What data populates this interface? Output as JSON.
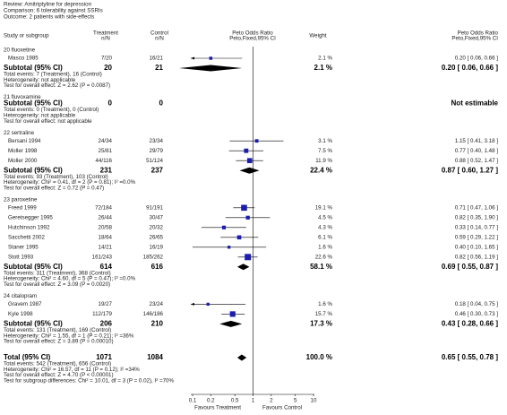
{
  "chart_data": {
    "type": "forest",
    "header": [
      "Review:   Amitriptyline for depression",
      "Comparison:   6 tolerability against SSRIs",
      "Outcome:   2 patients with side-effects"
    ],
    "columns": {
      "study": "Study or subgroup",
      "treatment": [
        "Treatment",
        "n/N"
      ],
      "control": [
        "Control",
        "n/N"
      ],
      "plot": [
        "Peto Odds Ratio",
        "Peto,Fixed,95% CI"
      ],
      "weight": "Weight",
      "result": [
        "Peto Odds Ratio",
        "Peto,Fixed,95% CI"
      ]
    },
    "xlim": [
      0.1,
      10
    ],
    "log_scale": true,
    "xticks": [
      0.1,
      0.2,
      0.5,
      1,
      2,
      5,
      10
    ],
    "favours_left": "Favours Treatment",
    "favours_right": "Favours Control",
    "square_color": "#1c1cb0",
    "diamond_color": "#000000",
    "groups": [
      {
        "name": "20 fluoxetine",
        "studies": [
          {
            "name": "Masco 1985",
            "treatment": "7/20",
            "control": "16/21",
            "weight": {
              "value": 2.1,
              "label": "2.1 %"
            },
            "result": {
              "value": 0.2,
              "low": 0.06,
              "high": 0.66,
              "label": "0.20 [ 0.06, 0.66 ]"
            }
          }
        ],
        "subtotal": {
          "label": "Subtotal (95% CI)",
          "treatment_n": 20,
          "control_n": 21,
          "weight": {
            "value": 2.1,
            "label": "2.1 %"
          },
          "result": {
            "value": 0.2,
            "low": 0.06,
            "high": 0.66,
            "label": "0.20 [ 0.06, 0.66 ]"
          },
          "footnotes": [
            "Total events: 7 (Treatment), 16 (Control)",
            "Heterogeneity: not applicable",
            "Test for overall effect: Z = 2.62 (P = 0.0087)"
          ]
        }
      },
      {
        "name": "21 fluvoxamine",
        "studies": [],
        "subtotal": {
          "label": "Subtotal (95% CI)",
          "treatment_n": 0,
          "control_n": 0,
          "result": {
            "label": "Not estimable"
          },
          "footnotes": [
            "Total events: 0 (Treatment), 0 (Control)",
            "Heterogeneity: not applicable",
            "Test for overall effect: not applicable"
          ]
        }
      },
      {
        "name": "22 sertraline",
        "studies": [
          {
            "name": "Bersani 1994",
            "treatment": "24/34",
            "control": "23/34",
            "weight": {
              "value": 3.1,
              "label": "3.1 %"
            },
            "result": {
              "value": 1.15,
              "low": 0.41,
              "high": 3.18,
              "label": "1.15 [ 0.41, 3.18 ]"
            }
          },
          {
            "name": "Moller 1998",
            "treatment": "25/81",
            "control": "29/79",
            "weight": {
              "value": 7.5,
              "label": "7.5 %"
            },
            "result": {
              "value": 0.77,
              "low": 0.4,
              "high": 1.48,
              "label": "0.77 [ 0.40, 1.48 ]"
            }
          },
          {
            "name": "Moller 2000",
            "treatment": "44/116",
            "control": "51/124",
            "weight": {
              "value": 11.9,
              "label": "11.9 %"
            },
            "result": {
              "value": 0.88,
              "low": 0.52,
              "high": 1.47,
              "label": "0.88 [ 0.52, 1.47 ]"
            }
          }
        ],
        "subtotal": {
          "label": "Subtotal (95% CI)",
          "treatment_n": 231,
          "control_n": 237,
          "weight": {
            "value": 22.4,
            "label": "22.4 %"
          },
          "result": {
            "value": 0.87,
            "low": 0.6,
            "high": 1.27,
            "label": "0.87 [ 0.60, 1.27 ]"
          },
          "footnotes": [
            "Total events: 93 (Treatment), 103 (Control)",
            "Heterogeneity: Chi² = 0.41, df = 2 (P = 0.81); I² =0.0%",
            "Test for overall effect: Z = 0.72 (P = 0.47)"
          ]
        }
      },
      {
        "name": "23 paroxetine",
        "studies": [
          {
            "name": "Freed 1999",
            "treatment": "72/184",
            "control": "91/191",
            "weight": {
              "value": 19.1,
              "label": "19.1 %"
            },
            "result": {
              "value": 0.71,
              "low": 0.47,
              "high": 1.06,
              "label": "0.71 [ 0.47, 1.06 ]"
            }
          },
          {
            "name": "Geretsegger 1995",
            "treatment": "26/44",
            "control": "30/47",
            "weight": {
              "value": 4.5,
              "label": "4.5 %"
            },
            "result": {
              "value": 0.82,
              "low": 0.35,
              "high": 1.9,
              "label": "0.82 [ 0.35, 1.90 ]"
            }
          },
          {
            "name": "Hutchinson 1992",
            "treatment": "20/58",
            "control": "20/32",
            "weight": {
              "value": 4.3,
              "label": "4.3 %"
            },
            "result": {
              "value": 0.33,
              "low": 0.14,
              "high": 0.77,
              "label": "0.33 [ 0.14, 0.77 ]"
            }
          },
          {
            "name": "Sacchetti 2002",
            "treatment": "18/64",
            "control": "26/65",
            "weight": {
              "value": 6.1,
              "label": "6.1 %"
            },
            "result": {
              "value": 0.59,
              "low": 0.29,
              "high": 1.22,
              "label": "0.59 [ 0.29, 1.22 ]"
            }
          },
          {
            "name": "Staner 1995",
            "treatment": "14/21",
            "control": "16/19",
            "weight": {
              "value": 1.6,
              "label": "1.6 %"
            },
            "result": {
              "value": 0.4,
              "low": 0.1,
              "high": 1.65,
              "label": "0.40 [ 0.10, 1.65 ]"
            }
          },
          {
            "name": "Stott 1993",
            "treatment": "161/243",
            "control": "185/262",
            "weight": {
              "value": 22.6,
              "label": "22.6 %"
            },
            "result": {
              "value": 0.82,
              "low": 0.56,
              "high": 1.19,
              "label": "0.82 [ 0.56, 1.19 ]"
            }
          }
        ],
        "subtotal": {
          "label": "Subtotal (95% CI)",
          "treatment_n": 614,
          "control_n": 616,
          "weight": {
            "value": 58.1,
            "label": "58.1 %"
          },
          "result": {
            "value": 0.69,
            "low": 0.55,
            "high": 0.87,
            "label": "0.69 [ 0.55, 0.87 ]"
          },
          "footnotes": [
            "Total events: 311 (Treatment), 368 (Control)",
            "Heterogeneity: Chi² = 4.60, df = 5 (P = 0.47); I² =0.0%",
            "Test for overall effect: Z = 3.09 (P = 0.0020)"
          ]
        }
      },
      {
        "name": "24 citalopram",
        "studies": [
          {
            "name": "Gravem 1987",
            "treatment": "19/27",
            "control": "23/24",
            "weight": {
              "value": 1.6,
              "label": "1.6 %"
            },
            "result": {
              "value": 0.18,
              "low": 0.04,
              "high": 0.75,
              "label": "0.18 [ 0.04, 0.75 ]"
            }
          },
          {
            "name": "Kyle 1998",
            "treatment": "112/179",
            "control": "146/186",
            "weight": {
              "value": 15.7,
              "label": "15.7 %"
            },
            "result": {
              "value": 0.46,
              "low": 0.3,
              "high": 0.73,
              "label": "0.46 [ 0.30, 0.73 ]"
            }
          }
        ],
        "subtotal": {
          "label": "Subtotal (95% CI)",
          "treatment_n": 206,
          "control_n": 210,
          "weight": {
            "value": 17.3,
            "label": "17.3 %"
          },
          "result": {
            "value": 0.43,
            "low": 0.28,
            "high": 0.66,
            "label": "0.43 [ 0.28, 0.66 ]"
          },
          "footnotes": [
            "Total events: 131 (Treatment), 169 (Control)",
            "Heterogeneity: Chi² = 1.55, df = 1 (P = 0.21); I² =36%",
            "Test for overall effect: Z = 3.89 (P = 0.00010)"
          ]
        }
      }
    ],
    "total": {
      "label": "Total (95% CI)",
      "treatment_n": 1071,
      "control_n": 1084,
      "weight": {
        "value": 100.0,
        "label": "100.0 %"
      },
      "result": {
        "value": 0.65,
        "low": 0.55,
        "high": 0.78,
        "label": "0.65 [ 0.55, 0.78 ]"
      },
      "footnotes": [
        "Total events: 542 (Treatment), 656 (Control)",
        "Heterogeneity: Chi² = 16.57, df = 11 (P = 0.12); I² =34%",
        "Test for overall effect: Z = 4.70 (P < 0.00001)",
        "Test for subgroup differences: Chi² = 10.01, df = 3 (P = 0.02), I² =70%"
      ]
    }
  }
}
